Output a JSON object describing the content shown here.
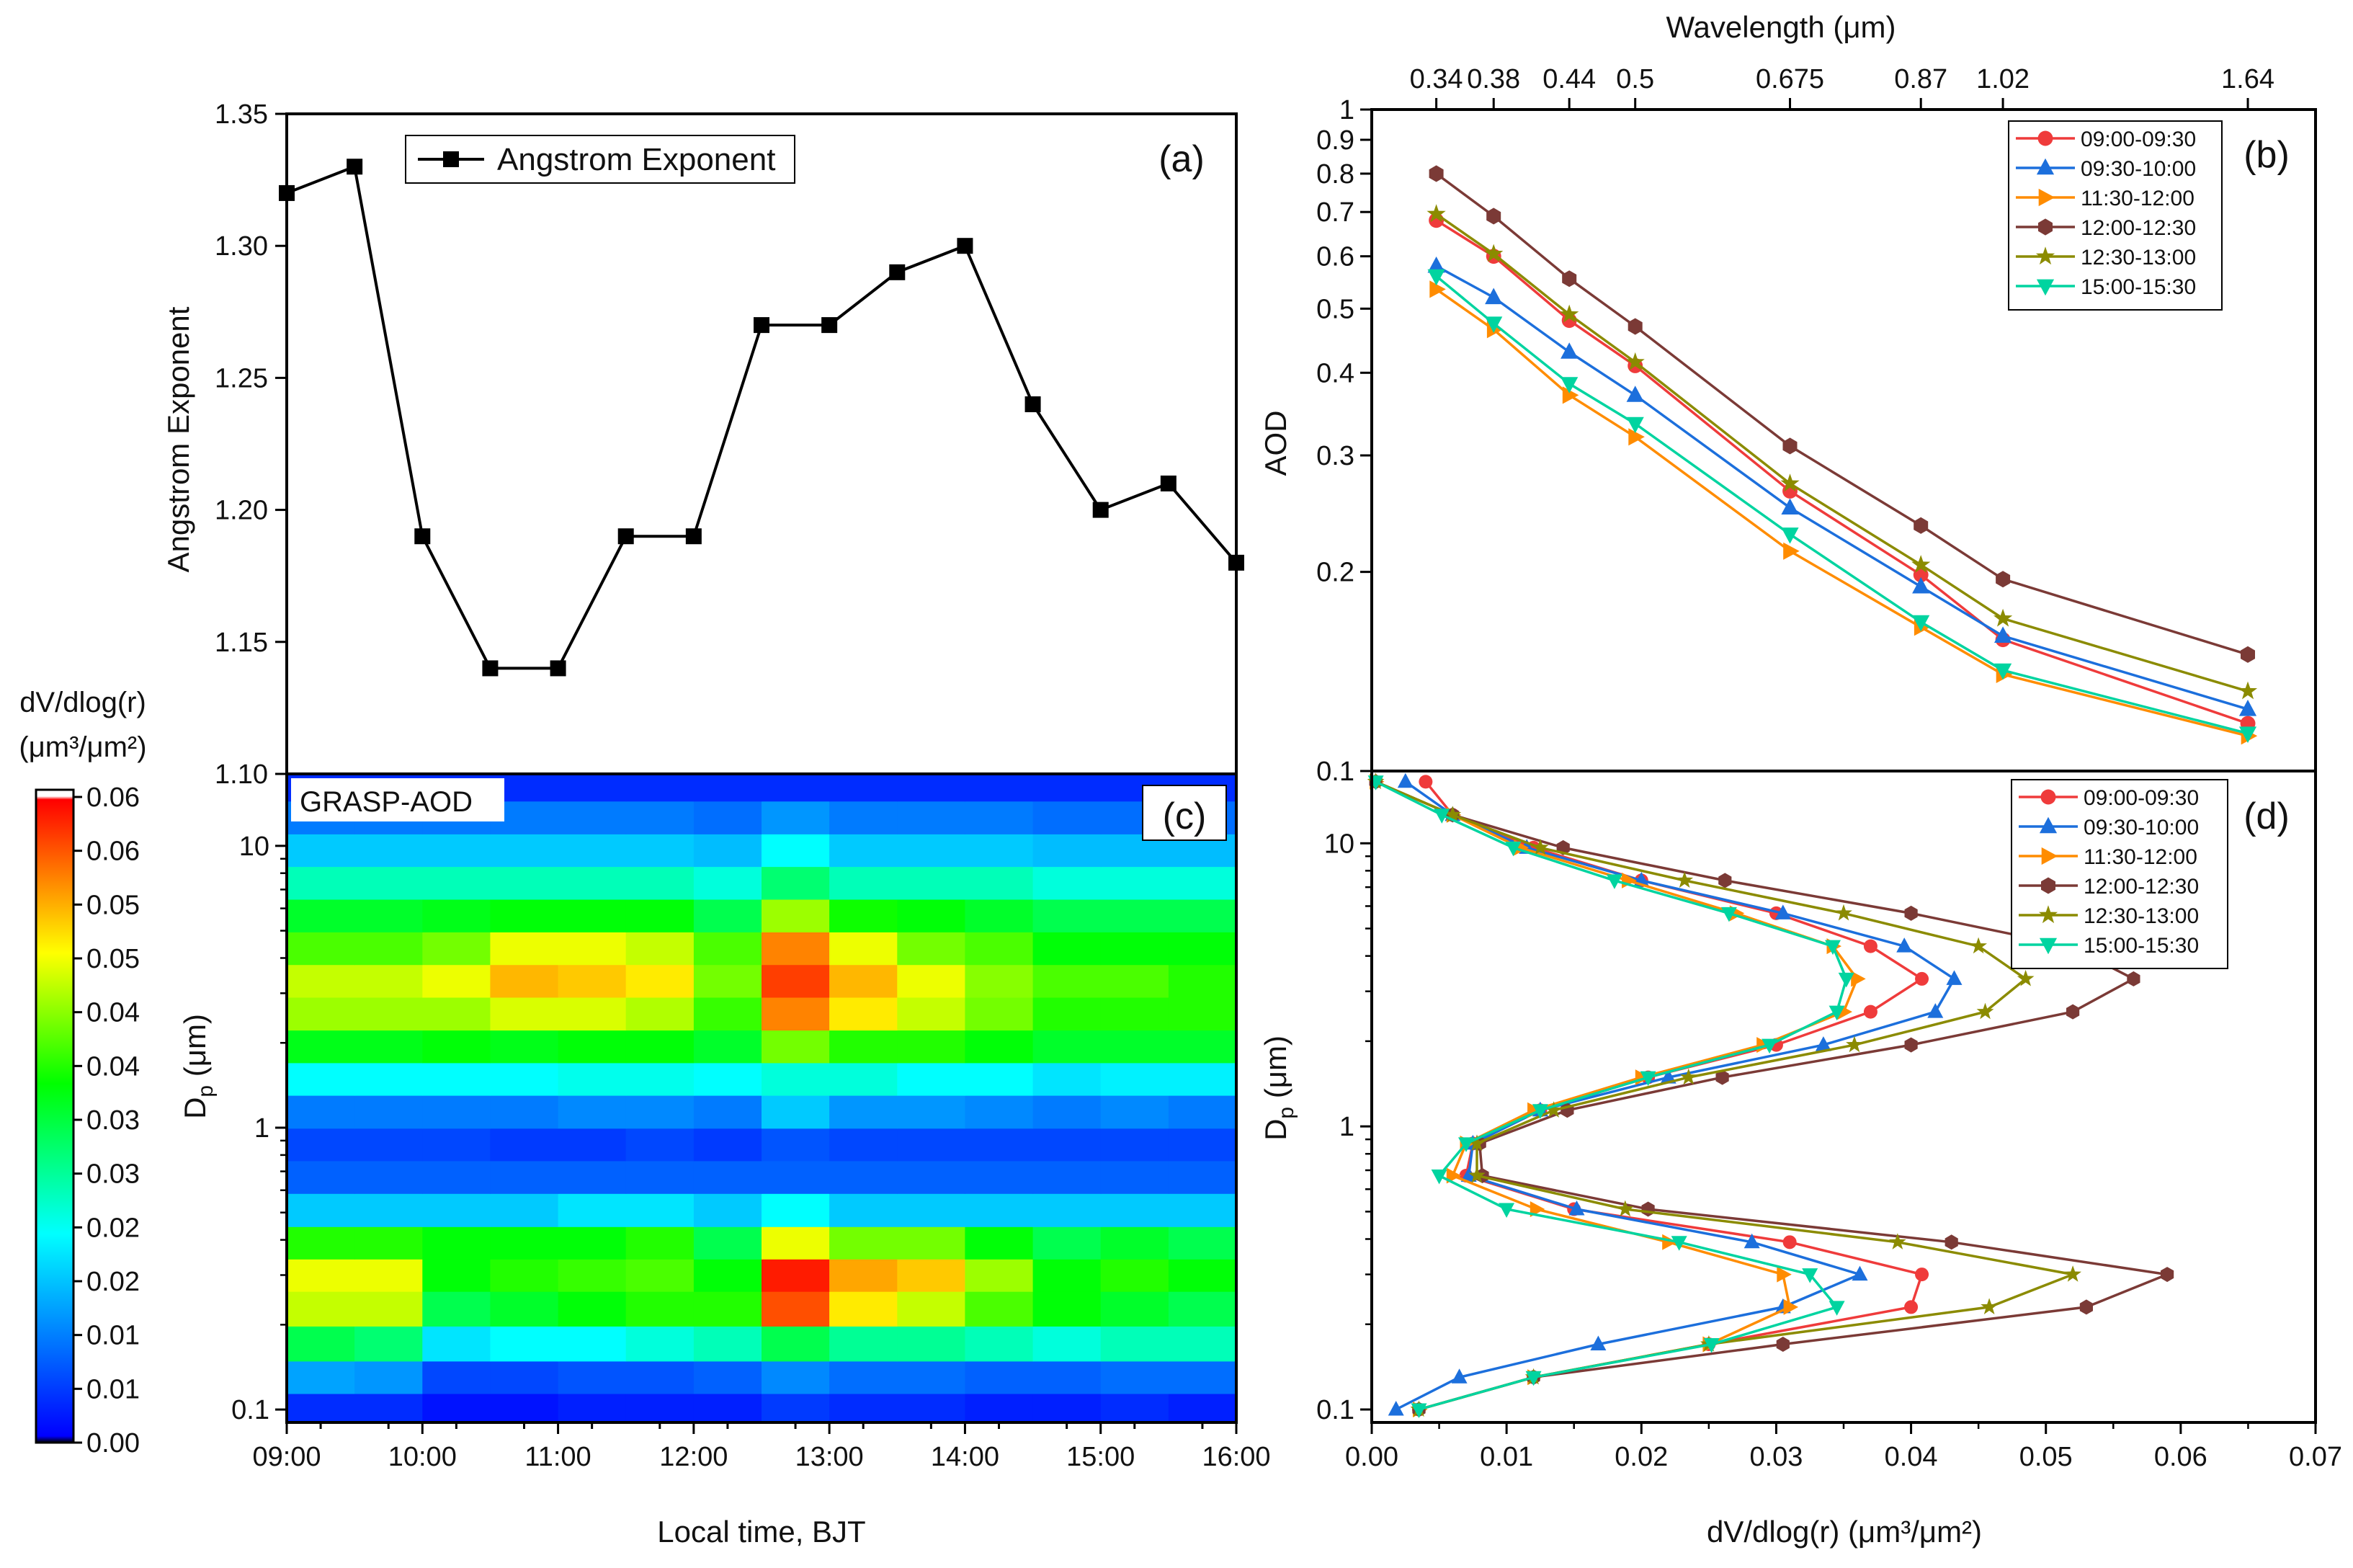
{
  "chart_data": [
    {
      "panel": "(a)",
      "type": "line",
      "x": [
        "09:00",
        "09:30",
        "10:00",
        "10:30",
        "11:00",
        "11:30",
        "12:00",
        "12:30",
        "13:00",
        "13:30",
        "14:00",
        "14:30",
        "15:00",
        "15:30",
        "16:00"
      ],
      "series": [
        {
          "name": "Angstrom Exponent",
          "color": "#000000",
          "marker": "square",
          "values": [
            1.32,
            1.33,
            1.19,
            1.14,
            1.14,
            1.19,
            1.19,
            1.27,
            1.27,
            1.29,
            1.3,
            1.24,
            1.2,
            1.21,
            1.18
          ]
        }
      ],
      "ylabel": "Angstrom Exponent",
      "ylim": [
        1.1,
        1.35
      ],
      "yticks": [
        "1.10",
        "1.15",
        "1.20",
        "1.25",
        "1.30",
        "1.35"
      ],
      "legend_position": "top-left"
    },
    {
      "panel": "(b)",
      "type": "line",
      "xlabel": "Wavelength (μm)",
      "x_axis_position": "top",
      "x": [
        0.34,
        0.38,
        0.44,
        0.5,
        0.675,
        0.87,
        1.02,
        1.64
      ],
      "xticks": [
        "0.34",
        "0.38",
        "0.44",
        "0.5",
        "0.675",
        "0.87",
        "1.02",
        "1.64"
      ],
      "ylabel": "AOD",
      "yscale": "log",
      "ylim": [
        0.1,
        1
      ],
      "yticks": [
        "0.1",
        "0.2",
        "0.3",
        "0.4",
        "0.5",
        "0.6",
        "0.7",
        "0.8",
        "0.9",
        "1"
      ],
      "series": [
        {
          "name": "09:00-09:30",
          "color": "#ef3b3b",
          "marker": "circle",
          "values": [
            0.68,
            0.6,
            0.48,
            0.41,
            0.265,
            0.198,
            0.158,
            0.118
          ]
        },
        {
          "name": "09:30-10:00",
          "color": "#1c6fdc",
          "marker": "triangle-up",
          "values": [
            0.58,
            0.52,
            0.43,
            0.37,
            0.25,
            0.19,
            0.16,
            0.124
          ]
        },
        {
          "name": "11:30-12:00",
          "color": "#ff8c00",
          "marker": "triangle-right",
          "values": [
            0.535,
            0.465,
            0.37,
            0.32,
            0.215,
            0.165,
            0.14,
            0.113
          ]
        },
        {
          "name": "12:00-12:30",
          "color": "#7b3a36",
          "marker": "hexagon",
          "values": [
            0.8,
            0.69,
            0.555,
            0.47,
            0.31,
            0.235,
            0.195,
            0.15
          ]
        },
        {
          "name": "12:30-13:00",
          "color": "#8b8b00",
          "marker": "star",
          "values": [
            0.695,
            0.605,
            0.49,
            0.415,
            0.272,
            0.205,
            0.17,
            0.132
          ]
        },
        {
          "name": "15:00-15:30",
          "color": "#00d4a0",
          "marker": "triangle-down",
          "values": [
            0.56,
            0.475,
            0.385,
            0.335,
            0.228,
            0.168,
            0.142,
            0.114
          ]
        }
      ],
      "legend_position": "top-right"
    },
    {
      "panel": "(c)",
      "type": "heatmap",
      "label": "GRASP-AOD",
      "xlabel": "Local time, BJT",
      "xticks": [
        "09:00",
        "10:00",
        "11:00",
        "12:00",
        "13:00",
        "14:00",
        "15:00",
        "16:00"
      ],
      "ylabel": "D_p (μm)",
      "yscale": "log",
      "ylim": [
        0.09,
        18
      ],
      "yticks": [
        "0.1",
        "1",
        "10"
      ],
      "times": [
        "09:00",
        "09:30",
        "10:00",
        "10:30",
        "11:00",
        "11:30",
        "12:00",
        "12:30",
        "13:00",
        "13:30",
        "14:00",
        "14:30",
        "15:00",
        "15:30"
      ],
      "dp_bins": [
        0.1,
        0.13,
        0.17,
        0.23,
        0.3,
        0.39,
        0.51,
        0.67,
        0.87,
        1.14,
        1.49,
        1.94,
        2.54,
        3.32,
        4.33,
        5.66,
        7.39,
        9.65,
        12.6,
        16.5
      ],
      "z": [
        [
          0.004,
          0.004,
          0.002,
          0.002,
          0.003,
          0.003,
          0.003,
          0.005,
          0.004,
          0.004,
          0.003,
          0.003,
          0.004,
          0.003
        ],
        [
          0.013,
          0.012,
          0.006,
          0.006,
          0.007,
          0.007,
          0.008,
          0.011,
          0.009,
          0.009,
          0.008,
          0.008,
          0.009,
          0.009
        ],
        [
          0.03,
          0.028,
          0.018,
          0.02,
          0.02,
          0.022,
          0.024,
          0.03,
          0.026,
          0.026,
          0.024,
          0.022,
          0.024,
          0.024
        ],
        [
          0.044,
          0.044,
          0.03,
          0.032,
          0.034,
          0.036,
          0.036,
          0.057,
          0.048,
          0.044,
          0.038,
          0.034,
          0.032,
          0.03
        ],
        [
          0.046,
          0.046,
          0.034,
          0.036,
          0.037,
          0.038,
          0.034,
          0.06,
          0.052,
          0.05,
          0.042,
          0.034,
          0.036,
          0.034
        ],
        [
          0.036,
          0.036,
          0.034,
          0.034,
          0.034,
          0.036,
          0.03,
          0.046,
          0.04,
          0.04,
          0.034,
          0.03,
          0.032,
          0.03
        ],
        [
          0.016,
          0.016,
          0.016,
          0.016,
          0.018,
          0.018,
          0.016,
          0.02,
          0.016,
          0.016,
          0.016,
          0.016,
          0.016,
          0.016
        ],
        [
          0.008,
          0.008,
          0.008,
          0.008,
          0.008,
          0.008,
          0.008,
          0.008,
          0.008,
          0.008,
          0.008,
          0.008,
          0.008,
          0.008
        ],
        [
          0.006,
          0.006,
          0.006,
          0.005,
          0.005,
          0.006,
          0.005,
          0.007,
          0.006,
          0.006,
          0.006,
          0.006,
          0.006,
          0.006
        ],
        [
          0.01,
          0.01,
          0.01,
          0.01,
          0.011,
          0.011,
          0.01,
          0.016,
          0.012,
          0.012,
          0.011,
          0.01,
          0.011,
          0.01
        ],
        [
          0.02,
          0.02,
          0.02,
          0.02,
          0.021,
          0.021,
          0.02,
          0.022,
          0.022,
          0.02,
          0.02,
          0.018,
          0.019,
          0.019
        ],
        [
          0.033,
          0.033,
          0.034,
          0.033,
          0.034,
          0.034,
          0.032,
          0.04,
          0.036,
          0.036,
          0.034,
          0.032,
          0.032,
          0.032
        ],
        [
          0.042,
          0.042,
          0.042,
          0.045,
          0.045,
          0.043,
          0.037,
          0.054,
          0.048,
          0.044,
          0.04,
          0.036,
          0.036,
          0.036
        ],
        [
          0.044,
          0.044,
          0.046,
          0.051,
          0.05,
          0.048,
          0.04,
          0.058,
          0.051,
          0.046,
          0.041,
          0.038,
          0.038,
          0.036
        ],
        [
          0.038,
          0.038,
          0.04,
          0.046,
          0.046,
          0.044,
          0.038,
          0.054,
          0.046,
          0.04,
          0.038,
          0.034,
          0.034,
          0.034
        ],
        [
          0.032,
          0.032,
          0.033,
          0.034,
          0.034,
          0.034,
          0.03,
          0.042,
          0.035,
          0.034,
          0.032,
          0.03,
          0.03,
          0.03
        ],
        [
          0.024,
          0.024,
          0.024,
          0.024,
          0.024,
          0.024,
          0.022,
          0.028,
          0.024,
          0.024,
          0.024,
          0.022,
          0.022,
          0.022
        ],
        [
          0.016,
          0.016,
          0.016,
          0.016,
          0.016,
          0.016,
          0.015,
          0.02,
          0.016,
          0.016,
          0.016,
          0.015,
          0.015,
          0.015
        ],
        [
          0.01,
          0.01,
          0.01,
          0.01,
          0.01,
          0.01,
          0.009,
          0.012,
          0.01,
          0.01,
          0.01,
          0.009,
          0.009,
          0.009
        ],
        [
          0.004,
          0.004,
          0.004,
          0.004,
          0.004,
          0.004,
          0.004,
          0.004,
          0.004,
          0.004,
          0.004,
          0.004,
          0.004,
          0.004
        ]
      ]
    },
    {
      "panel": "(d)",
      "type": "line",
      "xlabel": "dV/dlog(r) (μm³/μm²)",
      "xlim": [
        0,
        0.07
      ],
      "xticks": [
        "0.00",
        "0.01",
        "0.02",
        "0.03",
        "0.04",
        "0.05",
        "0.06",
        "0.07"
      ],
      "ylabel": "D_p (μm)",
      "yscale": "log",
      "ylim": [
        0.09,
        18
      ],
      "yticks": [
        "0.1",
        "1",
        "10"
      ],
      "dp": [
        0.1,
        0.13,
        0.17,
        0.23,
        0.3,
        0.39,
        0.51,
        0.67,
        0.87,
        1.14,
        1.49,
        1.94,
        2.54,
        3.32,
        4.33,
        5.66,
        7.39,
        9.65,
        12.6,
        16.5
      ],
      "series": [
        {
          "name": "09:00-09:30",
          "color": "#ef3b3b",
          "marker": "circle",
          "values": [
            0.0035,
            0.012,
            0.025,
            0.04,
            0.0408,
            0.031,
            0.015,
            0.007,
            0.0075,
            0.0125,
            0.0205,
            0.03,
            0.037,
            0.0408,
            0.037,
            0.03,
            0.02,
            0.012,
            0.006,
            0.004
          ]
        },
        {
          "name": "09:30-10:00",
          "color": "#1c6fdc",
          "marker": "triangle-up",
          "values": [
            0.0018,
            0.0065,
            0.0168,
            0.0305,
            0.0362,
            0.0282,
            0.0152,
            0.0072,
            0.0075,
            0.0125,
            0.022,
            0.0335,
            0.0418,
            0.0432,
            0.0395,
            0.0305,
            0.02,
            0.0115,
            0.006,
            0.0025
          ]
        },
        {
          "name": "11:30-12:00",
          "color": "#ff8c00",
          "marker": "triangle-right",
          "values": [
            0.0035,
            0.012,
            0.025,
            0.031,
            0.0305,
            0.022,
            0.0122,
            0.006,
            0.007,
            0.012,
            0.02,
            0.029,
            0.035,
            0.036,
            0.0342,
            0.027,
            0.019,
            0.011,
            0.006,
            0.0003
          ]
        },
        {
          "name": "12:00-12:30",
          "color": "#7b3a36",
          "marker": "hexagon",
          "values": [
            0.0035,
            0.012,
            0.0305,
            0.053,
            0.059,
            0.043,
            0.0205,
            0.0082,
            0.008,
            0.0145,
            0.026,
            0.04,
            0.052,
            0.0565,
            0.0518,
            0.04,
            0.0262,
            0.0142,
            0.006,
            0.0003
          ]
        },
        {
          "name": "12:30-13:00",
          "color": "#8b8b00",
          "marker": "star",
          "values": [
            0.0035,
            0.012,
            0.025,
            0.0458,
            0.052,
            0.039,
            0.0188,
            0.0078,
            0.0078,
            0.0135,
            0.0235,
            0.0358,
            0.0455,
            0.0485,
            0.045,
            0.035,
            0.0232,
            0.0125,
            0.006,
            0.0003
          ]
        },
        {
          "name": "15:00-15:30",
          "color": "#00d4a0",
          "marker": "triangle-down",
          "values": [
            0.0035,
            0.012,
            0.0252,
            0.0345,
            0.0325,
            0.0228,
            0.01,
            0.005,
            0.007,
            0.0125,
            0.0205,
            0.0295,
            0.0345,
            0.0352,
            0.0342,
            0.0265,
            0.018,
            0.0105,
            0.0052,
            0.0003
          ]
        }
      ],
      "legend_position": "top-right"
    }
  ],
  "colorbar": {
    "title_line1": "dV/dlog(r)",
    "title_line2": "(μm³/μm²)",
    "tick_labels": [
      "0.06",
      "0.06",
      "0.05",
      "0.05",
      "0.04",
      "0.04",
      "0.03",
      "0.03",
      "0.02",
      "0.02",
      "0.01",
      "0.01",
      "0.00"
    ],
    "range": [
      0,
      0.0625
    ],
    "colormap": [
      "#000000",
      "#0000ff",
      "#00ffff",
      "#00ff00",
      "#ffff00",
      "#ff0000",
      "#ffffff"
    ]
  }
}
